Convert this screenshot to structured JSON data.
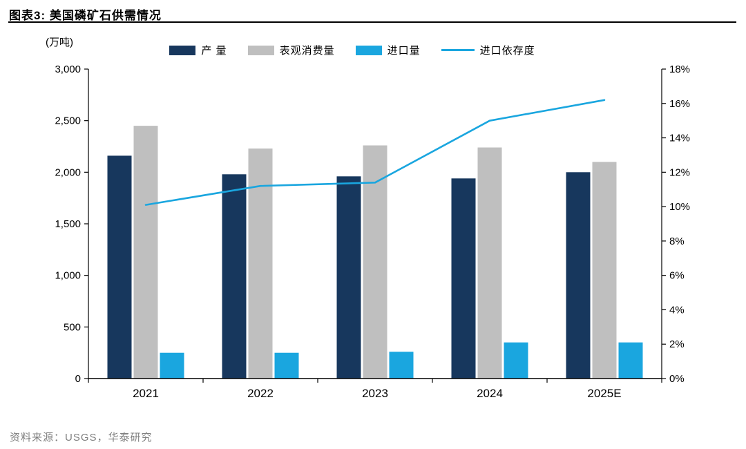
{
  "title": {
    "text": "图表3:  美国磷矿石供需情况"
  },
  "unit_label": "(万吨)",
  "source": "资料来源：USGS，华泰研究",
  "colors": {
    "production_bar": "#17375d",
    "consumption_bar": "#bfbfbf",
    "import_bar": "#1aa6df",
    "dependency_line": "#1aa6df",
    "axis": "#000000",
    "source_text": "#7f7f7f"
  },
  "chart_data": {
    "type": "bar",
    "title": "图表3: 美国磷矿石供需情况",
    "xlabel": "",
    "ylabel": "(万吨)",
    "grid": false,
    "legend_position": "top",
    "categories": [
      "2021",
      "2022",
      "2023",
      "2024",
      "2025E"
    ],
    "series": [
      {
        "name": "产 量",
        "type": "bar",
        "axis": "left",
        "color": "#17375d",
        "values": [
          2160,
          1980,
          1960,
          1940,
          2000
        ]
      },
      {
        "name": "表观消费量",
        "type": "bar",
        "axis": "left",
        "color": "#bfbfbf",
        "values": [
          2450,
          2230,
          2260,
          2240,
          2100
        ]
      },
      {
        "name": "进口量",
        "type": "bar",
        "axis": "left",
        "color": "#1aa6df",
        "values": [
          250,
          250,
          260,
          350,
          350
        ]
      },
      {
        "name": "进口依存度",
        "type": "line",
        "axis": "right",
        "color": "#1aa6df",
        "values": [
          10.1,
          11.2,
          11.4,
          15.0,
          16.2
        ]
      }
    ],
    "left_axis": {
      "min": 0,
      "max": 3000,
      "step": 500,
      "tick_labels": [
        "0",
        "500",
        "1,000",
        "1,500",
        "2,000",
        "2,500",
        "3,000"
      ]
    },
    "right_axis": {
      "min": 0,
      "max": 18,
      "step": 2,
      "suffix": "%",
      "tick_labels": [
        "0%",
        "2%",
        "4%",
        "6%",
        "8%",
        "10%",
        "12%",
        "14%",
        "16%",
        "18%"
      ]
    }
  }
}
